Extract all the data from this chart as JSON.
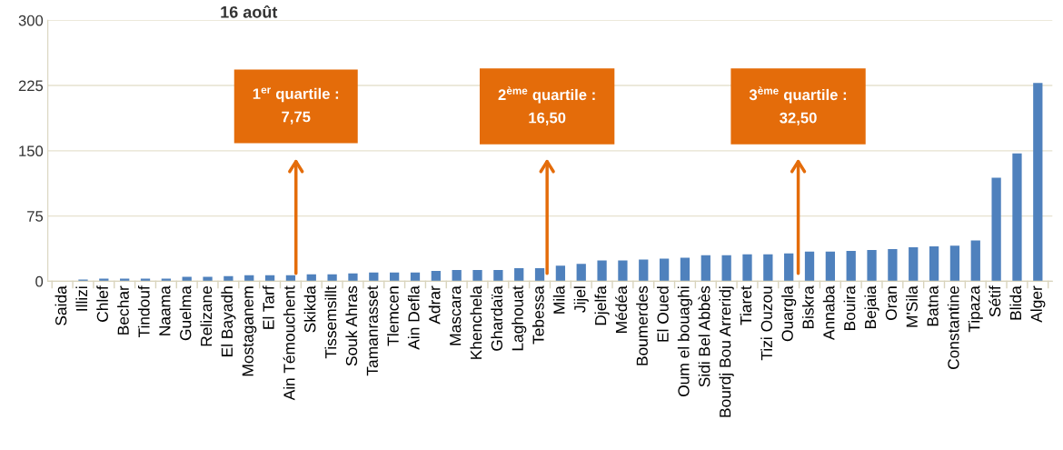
{
  "chart_data": {
    "type": "bar",
    "title": "16 août",
    "categories": [
      "Saida",
      "Illizi",
      "Chlef",
      "Bechar",
      "Tindouf",
      "Naama",
      "Guelma",
      "Relizane",
      "El Bayadh",
      "Mostaganem",
      "El Tarf",
      "Ain Témouchent",
      "Skikda",
      "Tissemsillt",
      "Souk Ahras",
      "Tamanrasset",
      "Tlemcen",
      "Ain Defla",
      "Adrar",
      "Mascara",
      "Khenchela",
      "Ghardaïa",
      "Laghouat",
      "Tebessa",
      "Mila",
      "Jijel",
      "Djelfa",
      "Médéa",
      "Boumerdes",
      "El Oued",
      "Oum el bouaghi",
      "Sidi Bel Abbès",
      "Bourdj Bou Arreridj",
      "Tiaret",
      "Tizi Ouzou",
      "Ouargla",
      "Biskra",
      "Annaba",
      "Bouira",
      "Bejaia",
      "Oran",
      "M'Sila",
      "Batna",
      "Constantine",
      "Tipaza",
      "Sétif",
      "Blida",
      "Alger"
    ],
    "values": [
      0,
      2,
      3,
      3,
      3,
      3,
      5,
      5,
      6,
      7,
      7,
      7,
      8,
      8,
      9,
      10,
      10,
      10,
      12,
      13,
      13,
      13,
      15,
      15,
      18,
      20,
      24,
      24,
      25,
      26,
      27,
      30,
      30,
      31,
      31,
      32,
      34,
      34,
      35,
      36,
      37,
      39,
      40,
      41,
      47,
      119,
      147,
      228
    ],
    "color": "#4f81bd",
    "ylim": [
      0,
      300
    ],
    "yticks": [
      0,
      75,
      150,
      225,
      300
    ],
    "grid": "y",
    "annotations": [
      "1$^{er}$ quartile :\n7,75",
      "2$^{ème}$ quartile :\n16,50",
      "3$^{ème}$ quartile :\n32,50"
    ]
  }
}
